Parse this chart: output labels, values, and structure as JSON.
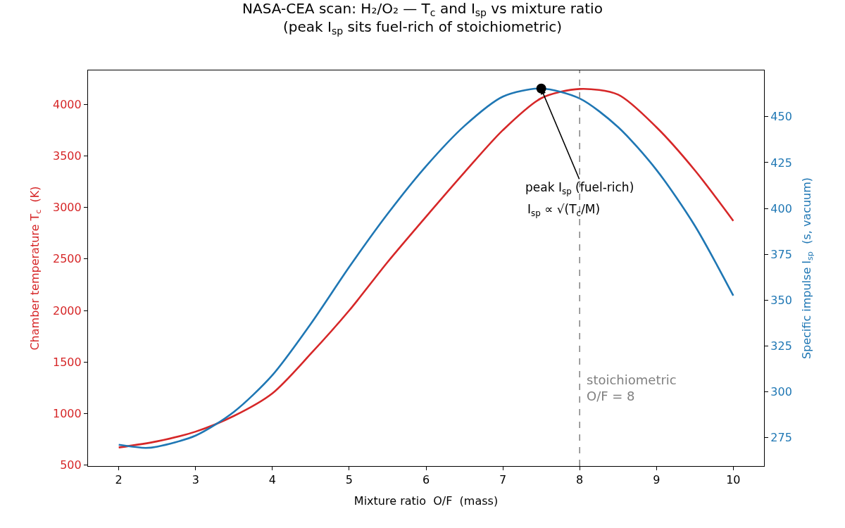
{
  "chart_data": {
    "type": "line",
    "title": "NASA-CEA scan: H₂/O₂ — T$_{c}$ and I$_{sp}$ vs mixture ratio",
    "subtitle": "(peak I$_{sp}$ sits fuel-rich of stoichiometric)",
    "xlabel": "Mixture ratio  O/F  (mass)",
    "ylabel": "Chamber temperature T$_{c}$  (K)",
    "y2label": "Specific impulse I$_{sp}$  (s, vacuum)",
    "series": [
      {
        "color": "#d62728",
        "x": [
          2,
          2.5,
          3,
          3.5,
          4,
          4.5,
          5,
          5.5,
          6,
          6.5,
          7,
          7.5,
          8,
          8.5,
          9,
          9.5,
          10
        ],
        "values": [
          670,
          730,
          824,
          977,
          1196,
          1580,
          2000,
          2470,
          2910,
          3340,
          3750,
          4060,
          4150,
          4095,
          3778,
          3360,
          2870
        ]
      },
      {
        "color": "#1f77b4",
        "axis": "y2",
        "x": [
          2,
          2.35,
          2.5,
          3,
          3.5,
          4,
          4.5,
          5,
          5.5,
          6,
          6.5,
          7,
          7.5,
          8,
          8.5,
          9,
          9.5,
          10
        ],
        "values": [
          271,
          269.3,
          270,
          276,
          289,
          309,
          337,
          368,
          397,
          423,
          445,
          461,
          465.4,
          460,
          444.4,
          421,
          390.5,
          352.4
        ]
      },
      {
        "type": "scatter",
        "color": "#000000",
        "axis": "y2",
        "marker": "circle",
        "x": [
          7.5
        ],
        "values": [
          465.4
        ]
      }
    ],
    "annotations": [
      {
        "text": "peak I$_{sp}$ (fuel-rich)",
        "x": 7.5,
        "y": 4150
      },
      "I$_{sp}$ ∝ √(T$_{c}$/M)"
    ],
    "ref_lines": [
      {
        "axis": "x",
        "value": 8,
        "label": "stoichiometric\nO/F = 8",
        "color": "#808080",
        "line_style": "dashed"
      }
    ],
    "xlim": [
      1.6,
      10.4
    ],
    "xticks": [
      2,
      3,
      4,
      5,
      6,
      7,
      8,
      9,
      10
    ],
    "ylim": [
      490,
      4330
    ],
    "yticks": [
      500,
      1000,
      1500,
      2000,
      2500,
      3000,
      3500,
      4000
    ],
    "y2lim": [
      259.4,
      475.3
    ],
    "y2ticks": [
      275,
      300,
      325,
      350,
      375,
      400,
      425,
      450
    ],
    "marker": "none",
    "line_style": "solid"
  }
}
